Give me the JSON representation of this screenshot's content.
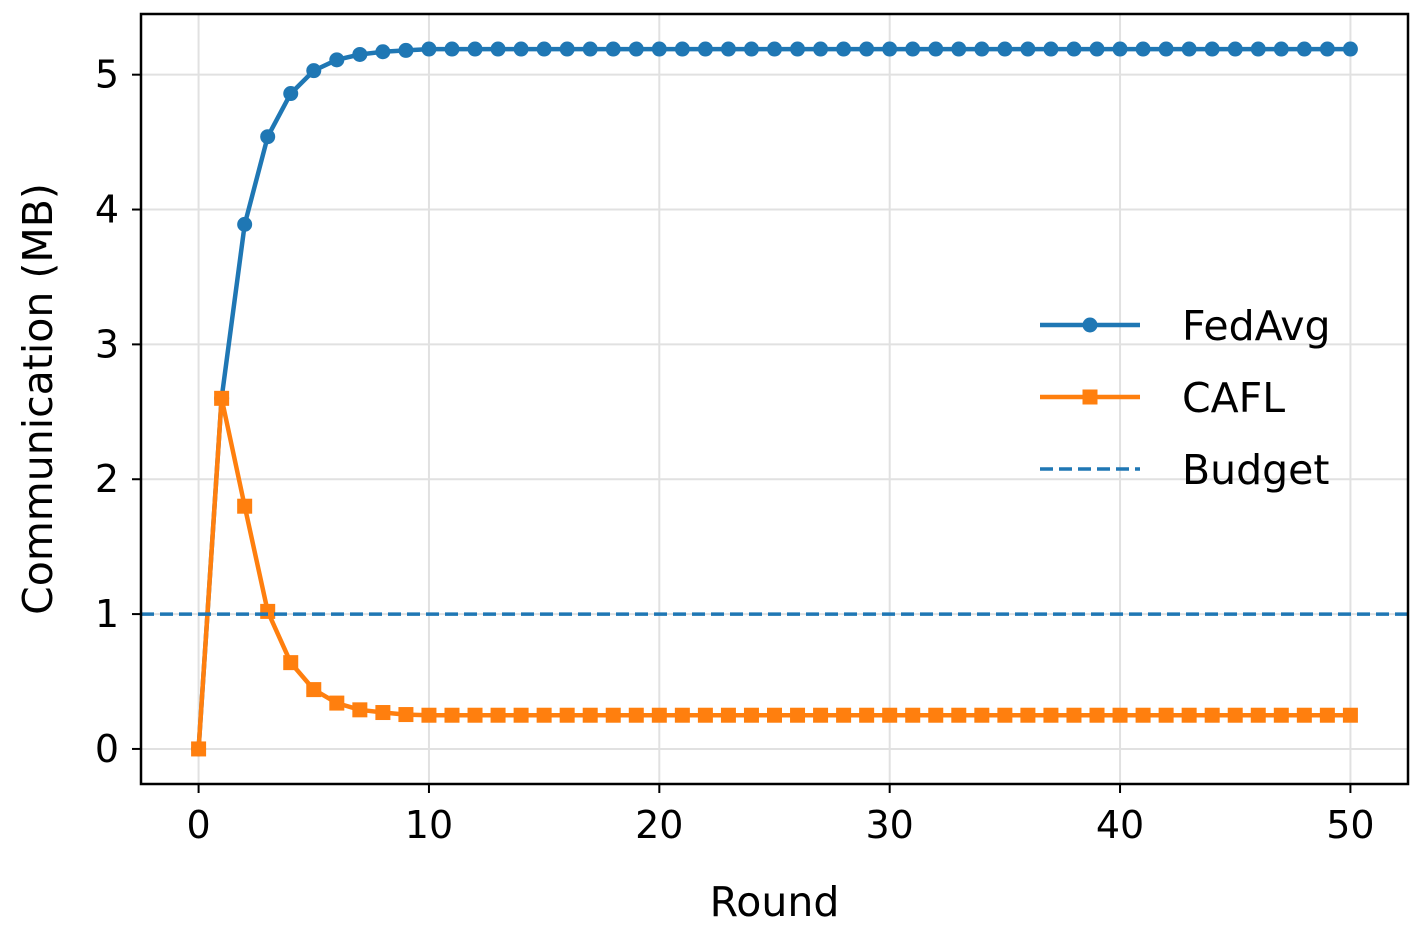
{
  "chart_data": {
    "type": "line",
    "title": "",
    "xlabel": "Round",
    "ylabel": "Communication (MB)",
    "xlim": [
      -2.5,
      52.5
    ],
    "ylim": [
      -0.26,
      5.45
    ],
    "xticks": [
      0,
      10,
      20,
      30,
      40,
      50
    ],
    "xtick_labels": [
      "0",
      "10",
      "20",
      "30",
      "40",
      "50"
    ],
    "yticks": [
      0,
      1,
      2,
      3,
      4,
      5
    ],
    "ytick_labels": [
      "0",
      "1",
      "2",
      "3",
      "4",
      "5"
    ],
    "grid": true,
    "legend_position": "center-right",
    "series": [
      {
        "name": "FedAvg",
        "color": "#1f77b4",
        "marker": "circle",
        "x": [
          0,
          1,
          2,
          3,
          4,
          5,
          6,
          7,
          8,
          9,
          10,
          11,
          12,
          13,
          14,
          15,
          16,
          17,
          18,
          19,
          20,
          21,
          22,
          23,
          24,
          25,
          26,
          27,
          28,
          29,
          30,
          31,
          32,
          33,
          34,
          35,
          36,
          37,
          38,
          39,
          40,
          41,
          42,
          43,
          44,
          45,
          46,
          47,
          48,
          49,
          50
        ],
        "values": [
          0,
          2.6,
          3.89,
          4.54,
          4.86,
          5.03,
          5.11,
          5.15,
          5.17,
          5.18,
          5.19,
          5.19,
          5.19,
          5.19,
          5.19,
          5.19,
          5.19,
          5.19,
          5.19,
          5.19,
          5.19,
          5.19,
          5.19,
          5.19,
          5.19,
          5.19,
          5.19,
          5.19,
          5.19,
          5.19,
          5.19,
          5.19,
          5.19,
          5.19,
          5.19,
          5.19,
          5.19,
          5.19,
          5.19,
          5.19,
          5.19,
          5.19,
          5.19,
          5.19,
          5.19,
          5.19,
          5.19,
          5.19,
          5.19,
          5.19,
          5.19
        ]
      },
      {
        "name": "CAFL",
        "color": "#ff7f0e",
        "marker": "square",
        "x": [
          0,
          1,
          2,
          3,
          4,
          5,
          6,
          7,
          8,
          9,
          10,
          11,
          12,
          13,
          14,
          15,
          16,
          17,
          18,
          19,
          20,
          21,
          22,
          23,
          24,
          25,
          26,
          27,
          28,
          29,
          30,
          31,
          32,
          33,
          34,
          35,
          36,
          37,
          38,
          39,
          40,
          41,
          42,
          43,
          44,
          45,
          46,
          47,
          48,
          49,
          50
        ],
        "values": [
          0,
          2.6,
          1.8,
          1.02,
          0.64,
          0.44,
          0.34,
          0.29,
          0.27,
          0.255,
          0.25,
          0.25,
          0.25,
          0.25,
          0.25,
          0.25,
          0.25,
          0.25,
          0.25,
          0.25,
          0.25,
          0.25,
          0.25,
          0.25,
          0.25,
          0.25,
          0.25,
          0.25,
          0.25,
          0.25,
          0.25,
          0.25,
          0.25,
          0.25,
          0.25,
          0.25,
          0.25,
          0.25,
          0.25,
          0.25,
          0.25,
          0.25,
          0.25,
          0.25,
          0.25,
          0.25,
          0.25,
          0.25,
          0.25,
          0.25,
          0.25
        ]
      },
      {
        "name": "Budget",
        "color": "#1f77b4",
        "style": "dashed",
        "y_constant": 1.0
      }
    ]
  }
}
